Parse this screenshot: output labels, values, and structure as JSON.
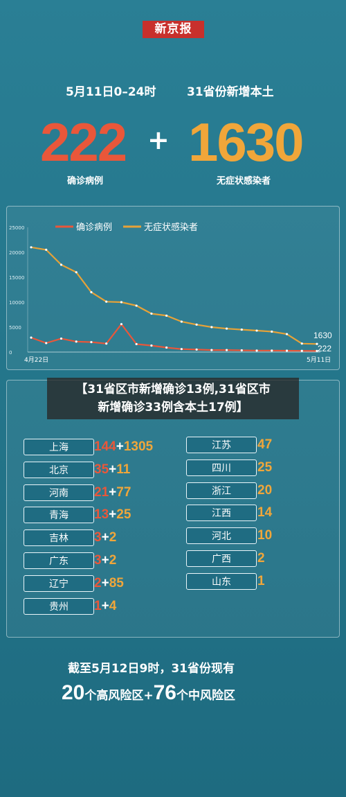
{
  "logo": "新京报",
  "header": {
    "date_text": "5月11日0–24时",
    "scope_text": "31省份新增本土"
  },
  "totals": {
    "confirmed": "222",
    "plus": "+",
    "asymptomatic": "1630",
    "confirmed_label": "确诊病例",
    "asymptomatic_label": "无症状感染者"
  },
  "overlay": {
    "line1": "【31省区市新增确诊13例,31省区市",
    "line2": "新增确诊33例含本土17例】"
  },
  "chart_data": {
    "type": "line",
    "x_start_label": "4月22日",
    "x_end_label": "5月11日",
    "yticks": [
      "0",
      "5000",
      "10000",
      "15000",
      "20000",
      "25000"
    ],
    "ylim": [
      0,
      25000
    ],
    "legend_position": "top",
    "series": [
      {
        "name": "确诊病例",
        "color": "#e9573a",
        "values": [
          2900,
          1800,
          2700,
          2100,
          2000,
          1700,
          5600,
          1600,
          1300,
          900,
          600,
          500,
          400,
          400,
          350,
          300,
          300,
          280,
          250,
          222
        ]
      },
      {
        "name": "无症状感染者",
        "color": "#e6a238",
        "values": [
          21000,
          20500,
          17500,
          16000,
          12000,
          10100,
          10000,
          9300,
          7700,
          7300,
          6100,
          5500,
          5000,
          4700,
          4500,
          4300,
          4100,
          3600,
          1700,
          1630
        ]
      }
    ],
    "end_labels": {
      "asymptomatic": "1630",
      "confirmed": "222"
    }
  },
  "provinces_left": [
    {
      "name": "上海",
      "confirmed": "144",
      "asym": "1305"
    },
    {
      "name": "北京",
      "confirmed": "35",
      "asym": "11"
    },
    {
      "name": "河南",
      "confirmed": "21",
      "asym": "77"
    },
    {
      "name": "青海",
      "confirmed": "13",
      "asym": "25"
    },
    {
      "name": "吉林",
      "confirmed": "3",
      "asym": "2"
    },
    {
      "name": "广东",
      "confirmed": "3",
      "asym": "2"
    },
    {
      "name": "辽宁",
      "confirmed": "2",
      "asym": "85"
    },
    {
      "name": "贵州",
      "confirmed": "1",
      "asym": "4"
    }
  ],
  "provinces_right": [
    {
      "name": "江苏",
      "value": "47"
    },
    {
      "name": "四川",
      "value": "25"
    },
    {
      "name": "浙江",
      "value": "20"
    },
    {
      "name": "江西",
      "value": "14"
    },
    {
      "name": "河北",
      "value": "10"
    },
    {
      "name": "广西",
      "value": "2"
    },
    {
      "name": "山东",
      "value": "1"
    }
  ],
  "footer": {
    "line1": "截至5月12日9时，31省份现有",
    "high_count": "20",
    "high_text": "个高风险区+",
    "mid_count": "76",
    "mid_text": "个中风险区"
  }
}
